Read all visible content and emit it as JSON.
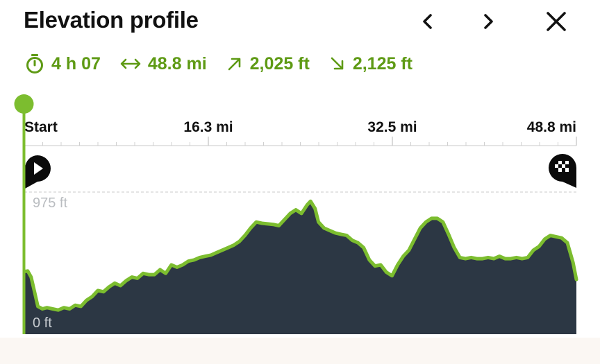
{
  "header": {
    "title": "Elevation profile"
  },
  "stats": {
    "duration": "4 h 07",
    "distance": "48.8 mi",
    "ascent": "2,025 ft",
    "descent": "2,125 ft"
  },
  "colors": {
    "accent": "#5e9a14",
    "route_line": "#7cbd2f",
    "route_line_steep": "#d1a73a",
    "area_fill": "#2c3744",
    "marker": "#0b0b0b"
  },
  "icons": {
    "prev": "chevron-left-icon",
    "next": "chevron-right-icon",
    "close": "close-icon",
    "duration": "stopwatch-icon",
    "distance": "horizontal-double-arrow-icon",
    "ascent": "arrow-up-right-icon",
    "descent": "arrow-down-right-icon",
    "start": "play-marker-icon",
    "finish": "finish-flag-marker-icon"
  },
  "chart_data": {
    "type": "area",
    "xlabel": "",
    "ylabel": "",
    "x_ticks": [
      "Start",
      "16.3 mi",
      "32.5 mi",
      "48.8 mi"
    ],
    "y_tick_labels": [
      "975 ft",
      "0 ft"
    ],
    "xlim": [
      0,
      48.8
    ],
    "ylim": [
      0,
      975
    ],
    "grid": false,
    "series": [
      {
        "x": [
          0,
          0.3,
          0.6,
          0.9,
          1.2,
          1.6,
          2.0,
          2.5,
          3.0,
          3.5,
          4.0,
          4.5,
          5.0,
          5.5,
          6.0,
          6.5,
          7.0,
          7.5,
          8.0,
          8.5,
          9.0,
          9.5,
          10.0,
          10.5,
          11.0,
          11.5,
          12.0,
          12.5,
          13.0,
          13.5,
          14.0,
          14.5,
          15.0,
          15.5,
          16.0,
          16.5,
          17.0,
          17.5,
          18.0,
          18.5,
          19.0,
          19.5,
          20.0,
          20.5,
          21.0,
          21.5,
          22.0,
          22.5,
          23.0,
          23.5,
          24.0,
          24.5,
          25.0,
          25.3,
          25.7,
          26.0,
          26.5,
          27.0,
          27.5,
          28.0,
          28.5,
          29.0,
          29.5,
          30.0,
          30.5,
          31.0,
          31.5,
          32.0,
          32.5,
          33.0,
          33.5,
          34.0,
          34.5,
          35.0,
          35.5,
          36.0,
          36.5,
          37.0,
          37.5,
          38.0,
          38.5,
          39.0,
          39.5,
          40.0,
          40.5,
          41.0,
          41.5,
          42.0,
          42.5,
          43.0,
          43.5,
          44.0,
          44.5,
          45.0,
          45.5,
          46.0,
          46.5,
          47.0,
          47.5,
          48.0,
          48.5,
          48.8
        ],
        "y": [
          325,
          330,
          280,
          160,
          40,
          20,
          30,
          20,
          10,
          30,
          20,
          50,
          40,
          90,
          120,
          170,
          160,
          200,
          230,
          210,
          250,
          280,
          270,
          310,
          300,
          300,
          340,
          310,
          380,
          360,
          380,
          410,
          420,
          440,
          450,
          460,
          480,
          500,
          520,
          540,
          570,
          620,
          680,
          730,
          720,
          715,
          710,
          700,
          750,
          800,
          830,
          800,
          870,
          900,
          840,
          730,
          680,
          660,
          640,
          630,
          620,
          580,
          560,
          520,
          420,
          370,
          380,
          320,
          290,
          380,
          450,
          500,
          590,
          680,
          730,
          760,
          760,
          730,
          630,
          520,
          440,
          430,
          440,
          430,
          430,
          440,
          430,
          450,
          430,
          430,
          440,
          430,
          440,
          500,
          530,
          590,
          620,
          610,
          600,
          560,
          400,
          260
        ]
      }
    ]
  }
}
